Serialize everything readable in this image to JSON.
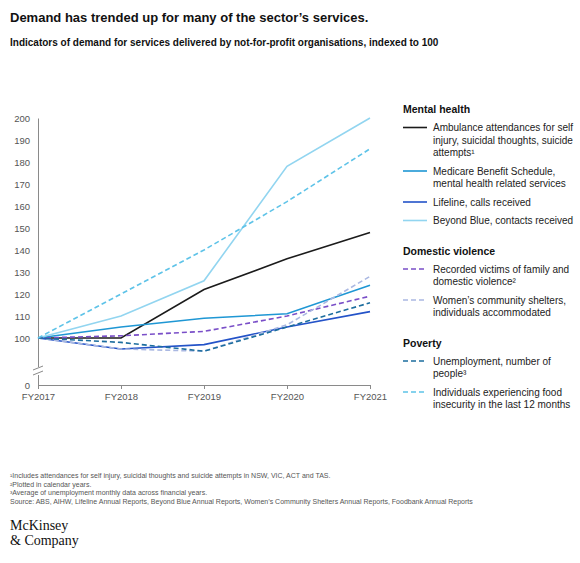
{
  "chart_data": {
    "type": "line",
    "title": "Demand has trended up for many of the sector’s services.",
    "subtitle": "Indicators of demand for services delivered by not-for-profit organisations, indexed to 100",
    "categories": [
      "FY2017",
      "FY2018",
      "FY2019",
      "FY2020",
      "FY2021"
    ],
    "ylim": [
      0,
      200
    ],
    "yticks": [
      0,
      100,
      110,
      120,
      130,
      140,
      150,
      160,
      170,
      180,
      190,
      200
    ],
    "grid": false,
    "legend": "right",
    "series": [
      {
        "name": "Ambulance attendances for self injury, suicidal thoughts, suicide attempts¹",
        "group": "Mental health",
        "color": "#1b1b1b",
        "line_style": "solid",
        "values": [
          100,
          100,
          122,
          136,
          148
        ]
      },
      {
        "name": "Medicare Benefit Schedule, mental health related services",
        "group": "Mental health",
        "color": "#1f97d4",
        "line_style": "solid",
        "values": [
          100,
          105,
          109,
          111,
          124
        ]
      },
      {
        "name": "Lifeline, calls received",
        "group": "Mental health",
        "color": "#2453c8",
        "line_style": "solid",
        "values": [
          100,
          95,
          97,
          105,
          112
        ]
      },
      {
        "name": "Beyond Blue, contacts received",
        "group": "Mental health",
        "color": "#92d5f0",
        "line_style": "solid",
        "values": [
          100,
          110,
          126,
          178,
          200
        ]
      },
      {
        "name": "Recorded victims of family and domestic violence²",
        "group": "Domestic violence",
        "color": "#7a4fc8",
        "line_style": "dashed",
        "values": [
          100,
          101,
          103,
          110,
          119
        ]
      },
      {
        "name": "Women’s community shelters, individuals accommodated",
        "group": "Domestic violence",
        "color": "#aab8e2",
        "line_style": "dashed",
        "values": [
          100,
          95,
          94,
          106,
          128
        ]
      },
      {
        "name": "Unemployment, number of people³",
        "group": "Poverty",
        "color": "#1c6d9e",
        "line_style": "dashed",
        "values": [
          100,
          98,
          94,
          105,
          116
        ]
      },
      {
        "name": "Individuals experiencing food insecurity in the last 12 months",
        "group": "Poverty",
        "color": "#5ec3e8",
        "line_style": "dashed",
        "values": [
          100,
          120,
          140,
          162,
          186
        ]
      }
    ],
    "footnotes": [
      "¹Includes attendances for self injury, suicidal thoughts and suicide attempts in NSW, VIC, ACT and TAS.",
      "²Plotted in calendar years.",
      "³Average of unemployment monthly data across financial years."
    ],
    "source": "Source: ABS, AIHW, Lifeline Annual Reports, Beyond Blue Annual Reports, Women’s Community Shelters Annual Reports, Foodbank Annual Reports",
    "brand": [
      "McKinsey",
      "& Company"
    ]
  }
}
